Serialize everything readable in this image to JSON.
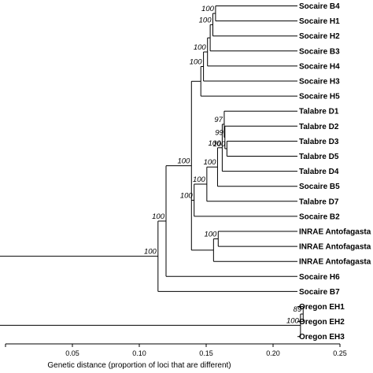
{
  "chart_data": {
    "type": "dendrogram",
    "xlabel": "Genetic distance (proportion of loci that are different)",
    "xlim": [
      0.0,
      0.25
    ],
    "ticks": [
      "0.05",
      "0.10",
      "0.15",
      "0.20",
      "0.25"
    ],
    "tick_values": [
      0.05,
      0.1,
      0.15,
      0.2,
      0.25
    ],
    "leaves": [
      "Socaire B4",
      "Socaire H1",
      "Socaire H2",
      "Socaire B3",
      "Socaire H4",
      "Socaire H3",
      "Socaire H5",
      "Talabre D1",
      "Talabre D2",
      "Talabre D3",
      "Talabre D5",
      "Talabre D4",
      "Socaire B5",
      "Talabre D7",
      "Socaire B2",
      "INRAE Antofagasta",
      "INRAE Antofagasta",
      "INRAE Antofagasta",
      "Socaire H6",
      "Socaire B7",
      "Oregon EH1",
      "Oregon EH2",
      "Oregon EH3"
    ],
    "nodes": [
      {
        "id": "n1",
        "height": 0.157,
        "children": [
          "L0",
          "L1"
        ],
        "support": "100"
      },
      {
        "id": "n2",
        "height": 0.155,
        "children": [
          "n1",
          "L2"
        ],
        "support": "100"
      },
      {
        "id": "n3",
        "height": 0.153,
        "children": [
          "n2",
          "L3"
        ],
        "support": ""
      },
      {
        "id": "n4",
        "height": 0.151,
        "children": [
          "n3",
          "L4"
        ],
        "support": "100"
      },
      {
        "id": "n5",
        "height": 0.148,
        "children": [
          "n4",
          "L5"
        ],
        "support": "100"
      },
      {
        "id": "n6",
        "height": 0.146,
        "children": [
          "n5",
          "L6"
        ],
        "support": ""
      },
      {
        "id": "n7",
        "height": 0.1655,
        "children": [
          "L9",
          "L10"
        ],
        "support": "100"
      },
      {
        "id": "n8",
        "height": 0.164,
        "children": [
          "L8",
          "n7"
        ],
        "support": "99"
      },
      {
        "id": "n9",
        "height": 0.1635,
        "children": [
          "L7",
          "n8"
        ],
        "support": "97"
      },
      {
        "id": "n10",
        "height": 0.162,
        "children": [
          "n9",
          "L11"
        ],
        "support": "100"
      },
      {
        "id": "n11",
        "height": 0.1585,
        "children": [
          "n10",
          "L12"
        ],
        "support": "100"
      },
      {
        "id": "n12",
        "height": 0.1505,
        "children": [
          "n11",
          "L13"
        ],
        "support": "100"
      },
      {
        "id": "n13",
        "height": 0.141,
        "children": [
          "n12",
          "L14"
        ],
        "support": "100"
      },
      {
        "id": "n14",
        "height": 0.159,
        "children": [
          "L15",
          "L16"
        ],
        "support": "100"
      },
      {
        "id": "n15",
        "height": 0.1555,
        "children": [
          "n14",
          "L17"
        ],
        "support": ""
      },
      {
        "id": "n16",
        "height": 0.139,
        "children": [
          "n6",
          "n13",
          "n15"
        ],
        "support": "100"
      },
      {
        "id": "n17",
        "height": 0.12,
        "children": [
          "n16",
          "L18"
        ],
        "support": "100"
      },
      {
        "id": "n18",
        "height": 0.114,
        "children": [
          "n17",
          "L19"
        ],
        "support": "100"
      },
      {
        "id": "n19",
        "height": 0.2225,
        "children": [
          "L20",
          "L21"
        ],
        "support": "89"
      },
      {
        "id": "n20",
        "height": 0.2205,
        "children": [
          "n19",
          "L22"
        ],
        "support": "100"
      }
    ],
    "root_lines": [
      {
        "node": "n18",
        "from": -0.05
      },
      {
        "node": "n20",
        "from": -0.05
      }
    ]
  }
}
